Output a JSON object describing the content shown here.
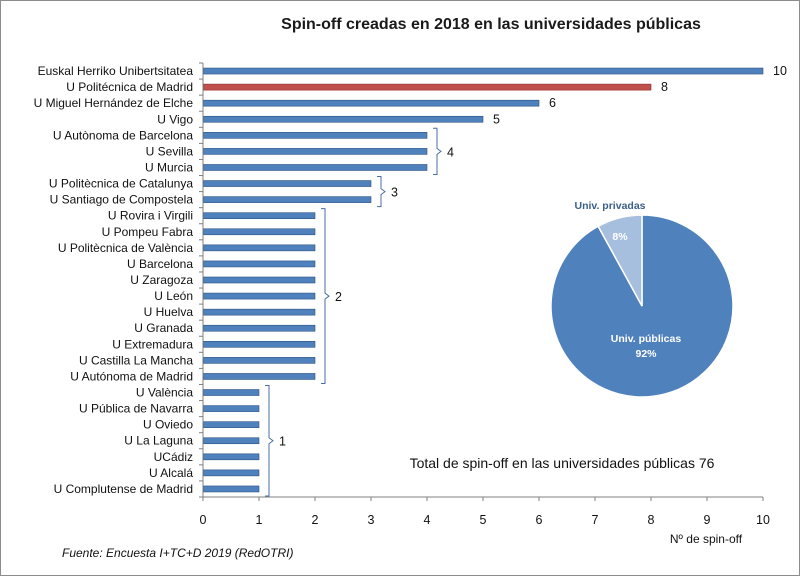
{
  "chart_data": {
    "type": "bar",
    "orientation": "horizontal",
    "title": "Spin-off creadas en 2018 en las universidades públicas",
    "xlabel": "Nº de spin-off",
    "xlim": [
      0,
      10
    ],
    "xticks": [
      0,
      1,
      2,
      3,
      4,
      5,
      6,
      7,
      8,
      9,
      10
    ],
    "categories": [
      "Euskal Herriko Unibertsitatea",
      "U Politécnica de Madrid",
      "U Miguel Hernández de Elche",
      "U Vigo",
      "U Autònoma de Barcelona",
      "U Sevilla",
      "U Murcia",
      "U Politècnica de Catalunya",
      "U Santiago de Compostela",
      "U Rovira i Virgili",
      "U Pompeu Fabra",
      "U Politècnica de València",
      "U Barcelona",
      "U Zaragoza",
      "U León",
      "U Huelva",
      "U Granada",
      "U Extremadura",
      "U Castilla La Mancha",
      "U Autónoma de Madrid",
      "U València",
      "U Pública de Navarra",
      "U Oviedo",
      "U La Laguna",
      "UCádiz",
      "U Alcalá",
      "U Complutense de Madrid"
    ],
    "values": [
      10,
      8,
      6,
      5,
      4,
      4,
      4,
      3,
      3,
      2,
      2,
      2,
      2,
      2,
      2,
      2,
      2,
      2,
      2,
      2,
      1,
      1,
      1,
      1,
      1,
      1,
      1
    ],
    "highlight_index": 1,
    "colors": {
      "bar": "#4f81bd",
      "highlight": "#c0504d",
      "bar_edge": "#2c5282"
    },
    "bar_labels": [
      {
        "text": "10",
        "index": 0
      },
      {
        "text": "8",
        "index": 1
      },
      {
        "text": "6",
        "index": 2
      },
      {
        "text": "5",
        "index": 3
      }
    ],
    "group_labels": [
      {
        "text": "4",
        "from": 4,
        "to": 6,
        "value": 4
      },
      {
        "text": "3",
        "from": 7,
        "to": 8,
        "value": 3
      },
      {
        "text": "2",
        "from": 9,
        "to": 19,
        "value": 2
      },
      {
        "text": "1",
        "from": 20,
        "to": 26,
        "value": 1
      }
    ],
    "inset_pie": {
      "type": "pie",
      "slices": [
        {
          "name": "Univ. públicas",
          "value": 92,
          "label": "92%",
          "color": "#4f81bd"
        },
        {
          "name": "Univ. privadas",
          "value": 8,
          "label": "8%",
          "color": "#a7bfde"
        }
      ]
    },
    "annotation": "Total de spin-off en las universidades públicas 76",
    "source": "Fuente:  Encuesta  I+TC+D  2019 (RedOTRI)"
  }
}
